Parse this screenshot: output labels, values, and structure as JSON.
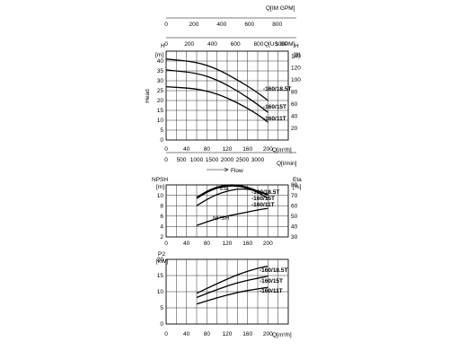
{
  "chart_data": [
    {
      "type": "line",
      "id": "head",
      "ylabel": "Head",
      "y_unit_left": "H",
      "y_unit_left_sub": "[m]",
      "y_unit_right": "H",
      "y_unit_right_sub": "[ft]",
      "top_axis_1_label": "Q[IM GPM]",
      "top_axis_2_label": "Q[US GPM]",
      "x_unit_label": "Q[m³/h]",
      "x2_unit_label": "Q[l/min]",
      "flow_label": "Flow",
      "xlim": [
        0,
        240
      ],
      "ylim": [
        0,
        45
      ],
      "y_ticks_left": [
        0,
        5,
        10,
        15,
        20,
        25,
        30,
        35,
        40
      ],
      "y_ticks_right": [
        "20",
        "40",
        "60",
        "80",
        "100",
        "120",
        "140"
      ],
      "x_ticks": [
        "0",
        "40",
        "80",
        "120",
        "160",
        "200"
      ],
      "x2_ticks": [
        "0",
        "500",
        "1000",
        "1500",
        "2000",
        "2500",
        "3000"
      ],
      "top_1_ticks": [
        "0",
        "200",
        "400",
        "600",
        "800"
      ],
      "top_2_ticks": [
        "0",
        "200",
        "400",
        "600",
        "800",
        "1000"
      ],
      "series": [
        {
          "name": "-160/18.5T",
          "x": [
            0,
            60,
            100,
            140,
            180,
            200
          ],
          "y": [
            41,
            39.5,
            36,
            30.5,
            24,
            20
          ]
        },
        {
          "name": "-160/15T",
          "x": [
            0,
            60,
            100,
            140,
            180,
            200
          ],
          "y": [
            35.5,
            34,
            30.5,
            25,
            18,
            14
          ]
        },
        {
          "name": "-160/11T",
          "x": [
            0,
            60,
            100,
            140,
            180,
            200
          ],
          "y": [
            27,
            26,
            23.5,
            19,
            13,
            9
          ]
        }
      ]
    },
    {
      "type": "line",
      "id": "npsh-eta",
      "y_unit_left": "NPSH",
      "y_unit_left_sub": "[m]",
      "y_unit_right": "Eta",
      "y_unit_right_sub": "[%]",
      "xlim": [
        0,
        240
      ],
      "ylim": [
        2,
        12
      ],
      "y_ticks_left": [
        "2",
        "4",
        "6",
        "8",
        "10"
      ],
      "y_ticks_right": [
        "30",
        "40",
        "50",
        "60",
        "70",
        "80"
      ],
      "x_ticks": [
        "0",
        "40",
        "80",
        "120",
        "160",
        "200"
      ],
      "npsh_label": "NPSH",
      "eta_label": "Eta",
      "series": [
        {
          "name": "-160/18.5T",
          "x": [
            60,
            80,
            100,
            120,
            140,
            160,
            180,
            200
          ],
          "y": [
            68,
            74,
            78,
            80,
            80,
            78,
            74,
            70
          ]
        },
        {
          "name": "-160/15T",
          "x": [
            60,
            80,
            100,
            120,
            140,
            160,
            180,
            200
          ],
          "y": [
            67,
            73,
            77,
            79,
            79,
            77,
            73,
            67
          ]
        },
        {
          "name": "-160/11T",
          "x": [
            60,
            80,
            100,
            120,
            140,
            160,
            180,
            200
          ],
          "y": [
            60,
            66,
            71,
            74,
            76,
            76,
            74,
            71
          ]
        },
        {
          "name": "NPSH",
          "x": [
            60,
            100,
            140,
            180,
            200
          ],
          "y": [
            4.2,
            5.6,
            6.4,
            7.2,
            7.5
          ]
        }
      ]
    },
    {
      "type": "line",
      "id": "power",
      "y_unit_left": "P2",
      "y_unit_left_sub": "[kW]",
      "x_unit_label": "Q[m³/h]",
      "xlim": [
        0,
        240
      ],
      "ylim": [
        0,
        20
      ],
      "y_ticks_left": [
        "0",
        "5",
        "10",
        "15",
        "20"
      ],
      "x_ticks": [
        "0",
        "40",
        "80",
        "120",
        "160",
        "200"
      ],
      "series": [
        {
          "name": "-160/18.5T",
          "x": [
            60,
            100,
            140,
            180,
            200
          ],
          "y": [
            9.5,
            12.5,
            15.3,
            17.3,
            17.9
          ]
        },
        {
          "name": "-160/15T",
          "x": [
            60,
            100,
            140,
            180,
            200
          ],
          "y": [
            8.2,
            10.7,
            12.8,
            14.2,
            14.8
          ]
        },
        {
          "name": "-160/11T",
          "x": [
            60,
            100,
            140,
            180,
            200
          ],
          "y": [
            6.2,
            8.1,
            9.8,
            10.9,
            11.3
          ]
        }
      ]
    }
  ]
}
